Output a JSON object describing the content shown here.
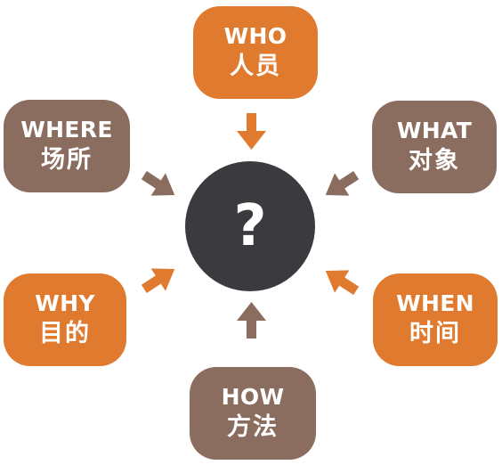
{
  "center": {
    "symbol": "?"
  },
  "nodes": {
    "who": {
      "en": "WHO",
      "zh": "人员"
    },
    "where": {
      "en": "WHERE",
      "zh": "场所"
    },
    "what": {
      "en": "WHAT",
      "zh": "对象"
    },
    "why": {
      "en": "WHY",
      "zh": "目的"
    },
    "when": {
      "en": "WHEN",
      "zh": "时间"
    },
    "how": {
      "en": "HOW",
      "zh": "方法"
    }
  },
  "colors": {
    "orange": "#e07a2e",
    "brown": "#8b6d5f",
    "center": "#3a3a3f"
  }
}
